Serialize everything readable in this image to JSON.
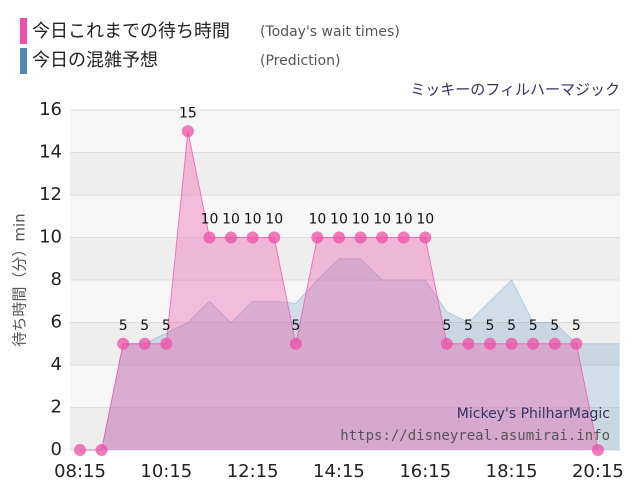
{
  "chart_data": {
    "type": "area",
    "subtitle": "ミッキーのフィルハーマジック",
    "y_label": "待ち時間（分）min",
    "watermark": [
      "Mickey's PhilharMagic",
      "https://disneyreal.asumirai.info"
    ],
    "categories": [
      "08:15",
      null,
      null,
      null,
      "10:15",
      null,
      null,
      null,
      "12:15",
      null,
      null,
      null,
      "14:15",
      null,
      null,
      null,
      "16:15",
      null,
      null,
      null,
      "18:15",
      null,
      null,
      null,
      "20:15",
      null
    ],
    "series": [
      {
        "name": "今日これまでの待ち時間",
        "note": "(Today's wait times)",
        "color": "#ee4fa8",
        "markers": true,
        "values": [
          0,
          0,
          5,
          5,
          5,
          15,
          10,
          10,
          10,
          10,
          5,
          10,
          10,
          10,
          10,
          10,
          10,
          5,
          5,
          5,
          5,
          5,
          5,
          5,
          0,
          null
        ]
      },
      {
        "name": "今日の混雑予想",
        "note": "(Prediction)",
        "color": "#4f88b8",
        "markers": false,
        "values": [
          0,
          0,
          5,
          5,
          5.5,
          6,
          7,
          6,
          7,
          7,
          6.9,
          8,
          9,
          9,
          8,
          8,
          8,
          6.5,
          6,
          7,
          8,
          6,
          6,
          5,
          5,
          5
        ]
      }
    ],
    "ylim": [
      0,
      16
    ],
    "yticks": [
      0,
      2,
      4,
      6,
      8,
      10,
      12,
      14,
      16
    ],
    "grid": true
  }
}
